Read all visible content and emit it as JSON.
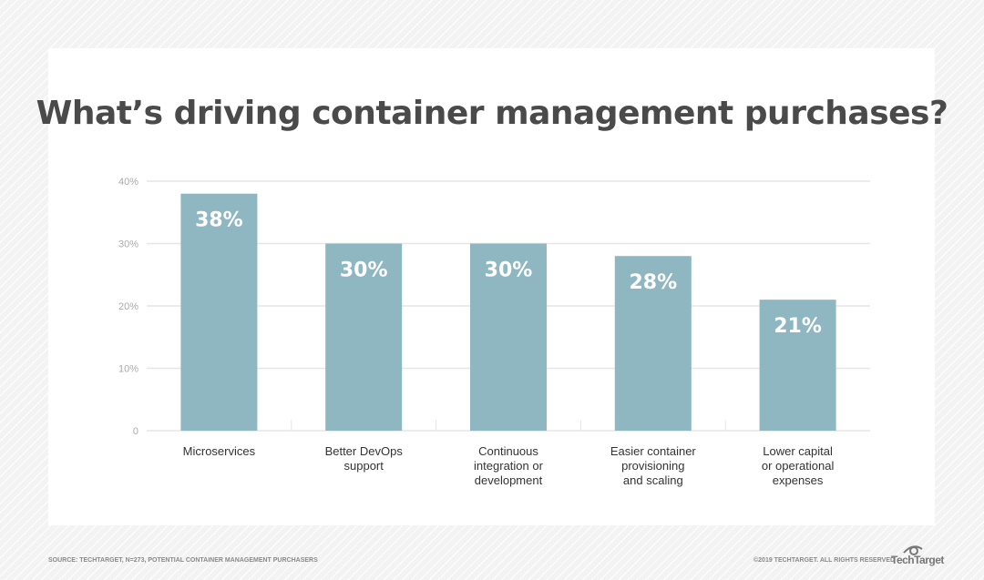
{
  "chart_data": {
    "type": "bar",
    "title": "What’s driving container management purchases?",
    "categories": [
      [
        "Microservices"
      ],
      [
        "Better DevOps",
        "support"
      ],
      [
        "Continuous",
        "integration or",
        "development"
      ],
      [
        "Easier container",
        "provisioning",
        "and scaling"
      ],
      [
        "Lower capital",
        "or operational",
        "expenses"
      ]
    ],
    "values": [
      38,
      30,
      30,
      28,
      21
    ],
    "data_labels": [
      "38%",
      "30%",
      "30%",
      "28%",
      "21%"
    ],
    "yticks": [
      {
        "v": 0,
        "label": "0"
      },
      {
        "v": 10,
        "label": "10%"
      },
      {
        "v": 20,
        "label": "20%"
      },
      {
        "v": 30,
        "label": "30%"
      },
      {
        "v": 40,
        "label": "40%"
      }
    ],
    "ylim": [
      0,
      40
    ],
    "grid": true,
    "bar_color": "#8fb7c1"
  },
  "footer": {
    "source": "SOURCE: TECHTARGET, N=273, POTENTIAL CONTAINER MANAGEMENT PURCHASERS",
    "copyright": "©2019 TECHTARGET. ALL RIGHTS RESERVED",
    "logo": "TechTarget"
  }
}
